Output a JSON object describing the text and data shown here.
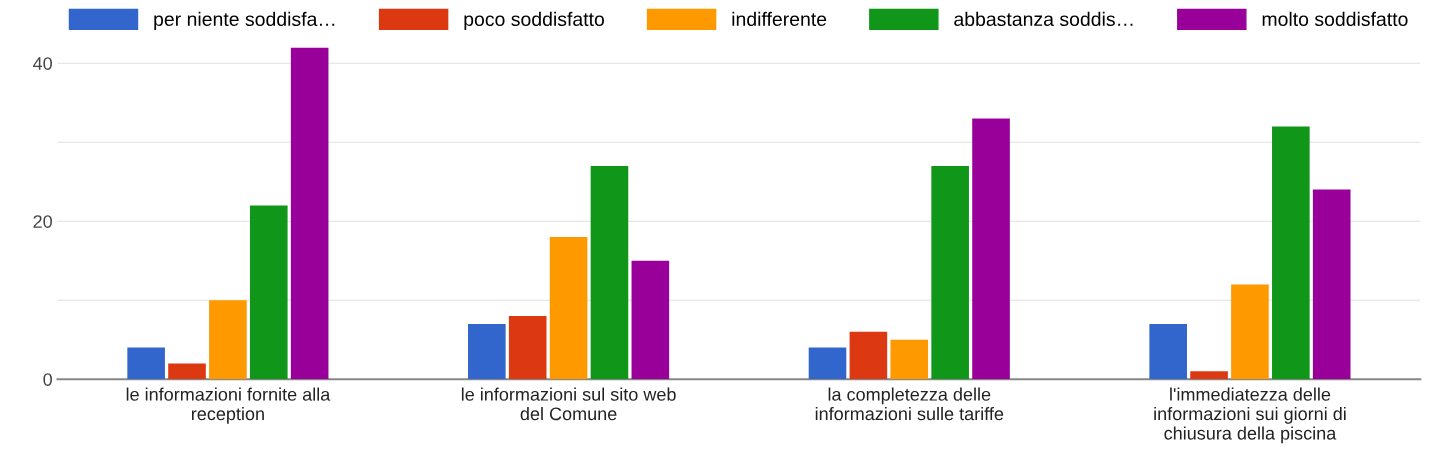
{
  "chart_data": {
    "type": "bar",
    "categories": [
      "le informazioni fornite alla\nreception",
      "le informazioni sul sito web\ndel Comune",
      "la completezza delle\ninformazioni sulle tariffe",
      "l'immediatezza delle\ninformazioni sui giorni di\nchiusura della piscina"
    ],
    "series": [
      {
        "name": "per niente soddisfa…",
        "color": "#3366cc",
        "values": [
          4,
          7,
          4,
          7
        ]
      },
      {
        "name": "poco soddisfatto",
        "color": "#dc3912",
        "values": [
          2,
          8,
          6,
          1
        ]
      },
      {
        "name": "indifferente",
        "color": "#ff9900",
        "values": [
          10,
          18,
          5,
          12
        ]
      },
      {
        "name": "abbastanza soddis…",
        "color": "#109618",
        "values": [
          22,
          27,
          27,
          32
        ]
      },
      {
        "name": "molto soddisfatto",
        "color": "#990099",
        "values": [
          42,
          15,
          33,
          24
        ]
      }
    ],
    "ylim": [
      0,
      42
    ],
    "yticks": [
      0,
      {
        "value": 10,
        "label": null
      },
      20,
      {
        "value": 30,
        "label": null
      },
      40
    ],
    "grid": "y",
    "legend": "top"
  }
}
